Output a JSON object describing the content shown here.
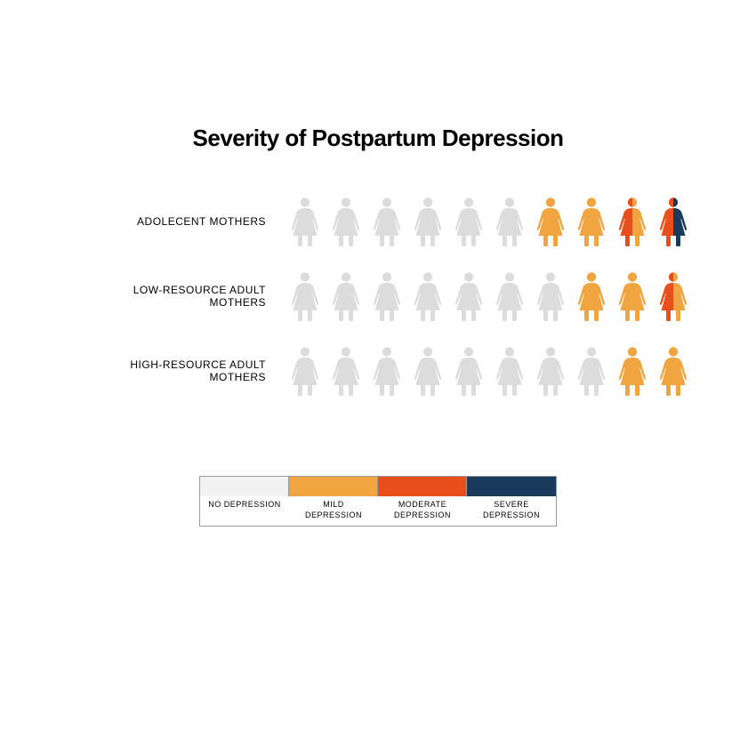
{
  "title": "Severity of Postpartum Depression",
  "colors": {
    "none": "#dcdcdc",
    "mild": "#f0a540",
    "moderate": "#e94f1c",
    "severe": "#1a3a5c",
    "legend_border": "#9a9a9a",
    "text": "#000000",
    "background": "#ffffff"
  },
  "legend": [
    {
      "label_line1": "NO DEPRESSION",
      "label_line2": "",
      "swatch": "#f2f2f2"
    },
    {
      "label_line1": "MILD",
      "label_line2": "DEPRESSION",
      "swatch": "#f0a540"
    },
    {
      "label_line1": "MODERATE",
      "label_line2": "DEPRESSION",
      "swatch": "#e94f1c"
    },
    {
      "label_line1": "SEVERE",
      "label_line2": "DEPRESSION",
      "swatch": "#1a3a5c"
    }
  ],
  "rows": [
    {
      "label": "ADOLECENT MOTHERS",
      "figures": [
        {
          "left": "#dcdcdc",
          "right": "#dcdcdc"
        },
        {
          "left": "#dcdcdc",
          "right": "#dcdcdc"
        },
        {
          "left": "#dcdcdc",
          "right": "#dcdcdc"
        },
        {
          "left": "#dcdcdc",
          "right": "#dcdcdc"
        },
        {
          "left": "#dcdcdc",
          "right": "#dcdcdc"
        },
        {
          "left": "#dcdcdc",
          "right": "#dcdcdc"
        },
        {
          "left": "#f0a540",
          "right": "#f0a540"
        },
        {
          "left": "#f0a540",
          "right": "#f0a540"
        },
        {
          "left": "#e94f1c",
          "right": "#f0a540"
        },
        {
          "left": "#e94f1c",
          "right": "#1a3a5c"
        }
      ]
    },
    {
      "label": "LOW-RESOURCE ADULT MOTHERS",
      "figures": [
        {
          "left": "#dcdcdc",
          "right": "#dcdcdc"
        },
        {
          "left": "#dcdcdc",
          "right": "#dcdcdc"
        },
        {
          "left": "#dcdcdc",
          "right": "#dcdcdc"
        },
        {
          "left": "#dcdcdc",
          "right": "#dcdcdc"
        },
        {
          "left": "#dcdcdc",
          "right": "#dcdcdc"
        },
        {
          "left": "#dcdcdc",
          "right": "#dcdcdc"
        },
        {
          "left": "#dcdcdc",
          "right": "#dcdcdc"
        },
        {
          "left": "#f0a540",
          "right": "#f0a540"
        },
        {
          "left": "#f0a540",
          "right": "#f0a540"
        },
        {
          "left": "#e94f1c",
          "right": "#f0a540"
        }
      ]
    },
    {
      "label": "HIGH-RESOURCE ADULT MOTHERS",
      "figures": [
        {
          "left": "#dcdcdc",
          "right": "#dcdcdc"
        },
        {
          "left": "#dcdcdc",
          "right": "#dcdcdc"
        },
        {
          "left": "#dcdcdc",
          "right": "#dcdcdc"
        },
        {
          "left": "#dcdcdc",
          "right": "#dcdcdc"
        },
        {
          "left": "#dcdcdc",
          "right": "#dcdcdc"
        },
        {
          "left": "#dcdcdc",
          "right": "#dcdcdc"
        },
        {
          "left": "#dcdcdc",
          "right": "#dcdcdc"
        },
        {
          "left": "#dcdcdc",
          "right": "#dcdcdc"
        },
        {
          "left": "#f0a540",
          "right": "#f0a540"
        },
        {
          "left": "#f0a540",
          "right": "#f0a540"
        }
      ]
    }
  ],
  "layout": {
    "figure_width": 40,
    "figure_height": 56,
    "figure_gap": 6,
    "row_gap": 28,
    "label_width": 220,
    "title_fontsize": 26,
    "label_fontsize": 12,
    "legend_fontsize": 9,
    "legend_swatch_width": 100,
    "legend_swatch_height": 22
  }
}
